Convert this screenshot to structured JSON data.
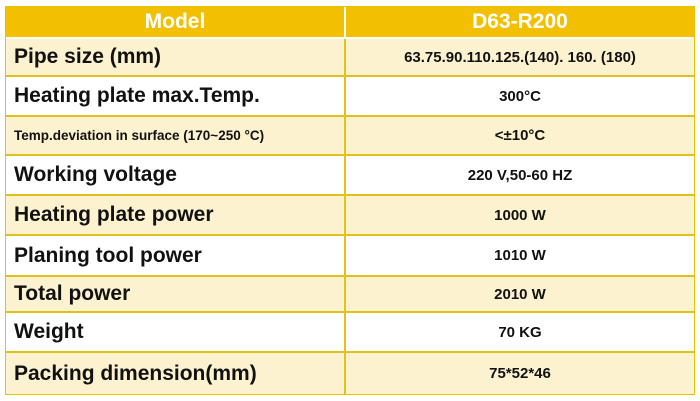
{
  "table": {
    "header": {
      "label": "Model",
      "value": "D63-R200"
    },
    "rows": [
      {
        "label": "Pipe size (mm)",
        "value": "63.75.90.110.125.(140). 160. (180)"
      },
      {
        "label": "Heating plate max.Temp.",
        "value": "300°C"
      },
      {
        "label": "Temp.deviation in surface (170~250 °C)",
        "value": "<±10°C"
      },
      {
        "label": "Working voltage",
        "value": "220 V,50-60 HZ"
      },
      {
        "label": "Heating plate power",
        "value": "1000 W"
      },
      {
        "label": "Planing tool power",
        "value": "1010 W"
      },
      {
        "label": "Total power",
        "value": "2010 W"
      },
      {
        "label": "Weight",
        "value": "70 KG"
      },
      {
        "label": "Packing dimension(mm)",
        "value": "75*52*46"
      }
    ]
  },
  "colors": {
    "header_bg": "#f2c000",
    "stripe_bg": "#fdf2cf",
    "border": "#e2c11a"
  }
}
